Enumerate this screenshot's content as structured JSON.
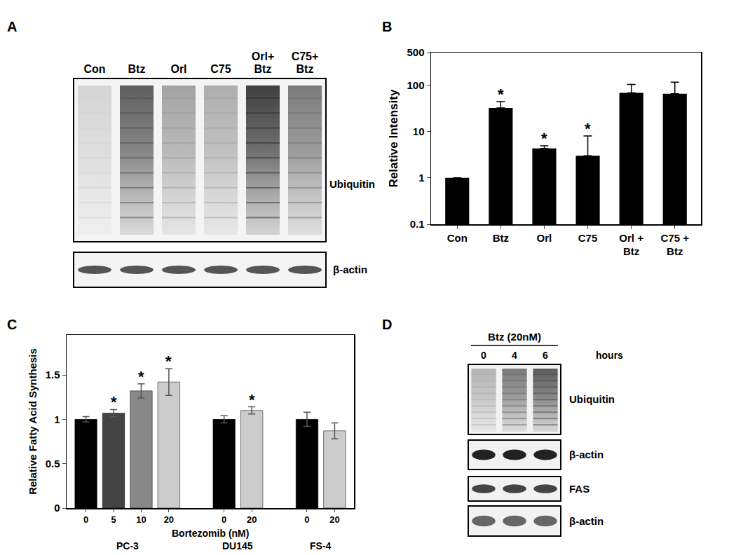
{
  "panel_labels": [
    "A",
    "B",
    "C",
    "D"
  ],
  "blot_A": {
    "lanes": [
      "Con",
      "Btz",
      "Orl",
      "C75",
      "Orl+\nBtz",
      "C75+\nBtz"
    ],
    "rows": [
      "Ubiquitin",
      "β-actin"
    ]
  },
  "blot_D": {
    "treatment": "Btz (20nM)",
    "lanes": [
      "0",
      "4",
      "6"
    ],
    "unit": "hours",
    "rows": [
      "Ubiquitin",
      "β-actin",
      "FAS",
      "β-actin"
    ]
  },
  "chart_data": [
    {
      "type": "bar",
      "categories": [
        "Con",
        "Btz",
        "Orl",
        "C75",
        "Orl +\nBtz",
        "C75 +\nBtz"
      ],
      "values": [
        1,
        32,
        4.3,
        3,
        68,
        65
      ],
      "errors": [
        0,
        12,
        0.6,
        5,
        35,
        50
      ],
      "color": "#000000",
      "log": "y",
      "ylim": [
        0.1,
        500
      ],
      "yticks": [
        0.1,
        1,
        10,
        100,
        500
      ],
      "y_label": "Relative Intensity",
      "annotations": [
        {
          "x": "Btz",
          "text": "*"
        },
        {
          "x": "Orl",
          "text": "*"
        },
        {
          "x": "C75",
          "text": "*"
        }
      ]
    },
    {
      "type": "bar",
      "x_label": "Bortezomib (nM)",
      "y_label": "Relative Fatty Acid Synthesis",
      "ylim": [
        0,
        1.95
      ],
      "yticks": [
        0,
        0.5,
        1,
        1.5
      ],
      "groups": [
        {
          "name": "PC-3",
          "categories": [
            "0",
            "5",
            "10",
            "20"
          ],
          "values": [
            1.0,
            1.07,
            1.32,
            1.42
          ],
          "errors": [
            0.03,
            0.04,
            0.08,
            0.15
          ],
          "colors": [
            "#000000",
            "#444444",
            "#888888",
            "#cccccc"
          ]
        },
        {
          "name": "DU145",
          "categories": [
            "0",
            "20"
          ],
          "values": [
            1.0,
            1.1
          ],
          "errors": [
            0.04,
            0.04
          ],
          "colors": [
            "#000000",
            "#cccccc"
          ]
        },
        {
          "name": "FS-4",
          "categories": [
            "0",
            "20"
          ],
          "values": [
            1.0,
            0.87
          ],
          "errors": [
            0.08,
            0.09
          ],
          "colors": [
            "#000000",
            "#cccccc"
          ]
        }
      ],
      "annotations": [
        {
          "group": "PC-3",
          "x": "5",
          "text": "*"
        },
        {
          "group": "PC-3",
          "x": "10",
          "text": "*"
        },
        {
          "group": "PC-3",
          "x": "20",
          "text": "*"
        },
        {
          "group": "DU145",
          "x": "20",
          "text": "*"
        }
      ]
    }
  ]
}
